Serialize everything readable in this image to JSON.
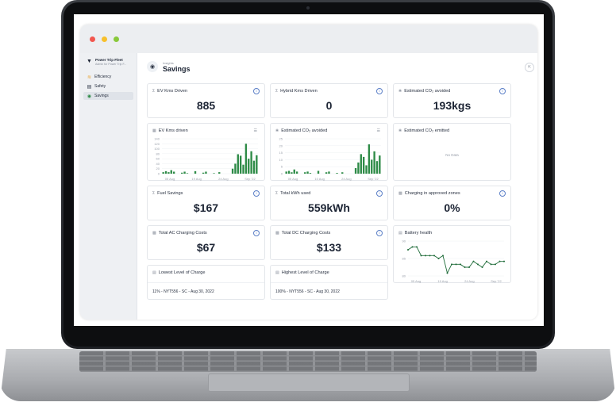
{
  "sidebar": {
    "fleet_name": "Power Trip Fleet",
    "fleet_sub": "Admin for Power Trip F...",
    "items": [
      {
        "label": "Efficiency",
        "icon": "bolt-icon"
      },
      {
        "label": "Safety",
        "icon": "shield-icon"
      },
      {
        "label": "Savings",
        "icon": "piggy-bank-icon",
        "active": true
      }
    ]
  },
  "header": {
    "breadcrumb": "Insights",
    "title": "Savings"
  },
  "cards": {
    "ev_kms": {
      "title": "EV Kms Driven",
      "value": "885"
    },
    "hybrid_kms": {
      "title": "Hybrid Kms Driven",
      "value": "0"
    },
    "co2_avoided": {
      "title": "Estimated CO₂ avoided",
      "value": "193kgs"
    },
    "fuel_savings": {
      "title": "Fuel Savings",
      "value": "$167"
    },
    "total_kwh": {
      "title": "Total kWh used",
      "value": "559kWh"
    },
    "charging_zones": {
      "title": "Charging in approved zones",
      "value": "0%"
    },
    "ac_costs": {
      "title": "Total AC Charging Costs",
      "value": "$67"
    },
    "dc_costs": {
      "title": "Total DC Charging Costs",
      "value": "$133"
    },
    "battery": {
      "title": "Battery health"
    },
    "lowest_charge": {
      "title": "Lowest Level of Charge",
      "value": "11% - NYT556 - SC - Aug 30, 2022"
    },
    "highest_charge": {
      "title": "Highest Level of Charge",
      "value": "100% - NYT556 - SC - Aug 30, 2022"
    },
    "co2_emitted": {
      "title": "Estimated CO₂ emitted",
      "nodata": "No Data"
    }
  },
  "chart_data": [
    {
      "type": "bar",
      "title": "EV Kms driven",
      "y_ticks": [
        "140",
        "120",
        "100",
        "80",
        "60",
        "40",
        "20",
        "0"
      ],
      "x_ticks": [
        "05 Aug",
        "19 Aug",
        "24 Aug",
        "Sep '22"
      ],
      "ylim": [
        0,
        140
      ],
      "values": [
        6,
        10,
        6,
        14,
        8,
        0,
        0,
        4,
        8,
        2,
        0,
        0,
        10,
        0,
        0,
        4,
        8,
        0,
        0,
        2,
        0,
        6,
        0,
        0,
        0,
        0,
        20,
        40,
        78,
        72,
        36,
        120,
        60,
        90,
        52,
        74
      ],
      "color": "#2e8b47"
    },
    {
      "type": "bar",
      "title": "Estimated CO₂ avoided",
      "y_ticks": [
        "25",
        "20",
        "15",
        "10",
        "5",
        "0"
      ],
      "x_ticks": [
        "05 Aug",
        "10 Aug",
        "24 Aug",
        "Sep '22"
      ],
      "ylim": [
        0,
        25
      ],
      "values": [
        1.5,
        2,
        1,
        3,
        1.5,
        0,
        0,
        1,
        1.5,
        0.5,
        0,
        0,
        2,
        0,
        0,
        1,
        1.5,
        0,
        0,
        0.5,
        0,
        1,
        0,
        0,
        0,
        0,
        4,
        8,
        14,
        12,
        6,
        21,
        10,
        16,
        9,
        13
      ],
      "color": "#2e8b47"
    },
    {
      "type": "line",
      "title": "Battery health",
      "y_ticks": [
        "90",
        "85",
        "80"
      ],
      "x_ticks": [
        "05 Aug",
        "19 Aug",
        "24 Aug",
        "Sep '22"
      ],
      "ylim": [
        79,
        91
      ],
      "values": [
        88,
        89,
        89,
        86,
        86,
        86,
        86,
        85,
        86,
        80,
        83,
        83,
        83,
        82,
        82,
        84,
        83,
        82,
        84,
        83,
        83,
        84,
        84
      ],
      "color": "#1e6b38"
    }
  ]
}
